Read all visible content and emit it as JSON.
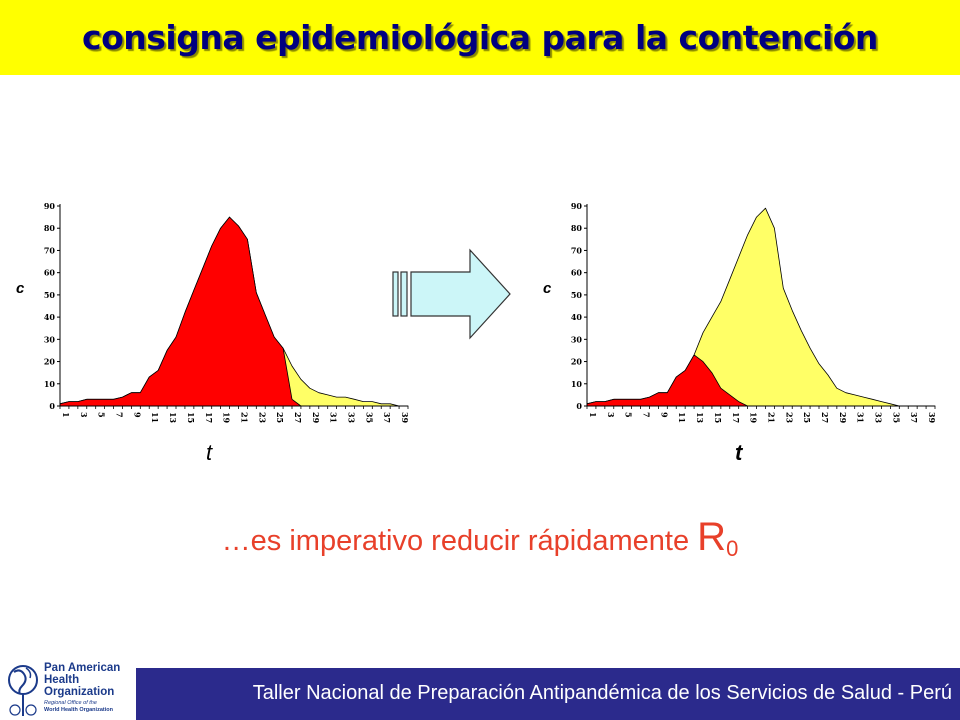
{
  "header": {
    "title": "consigna epidemiológica para la contención"
  },
  "chart_data": [
    {
      "type": "area",
      "ylabel": "c",
      "xlabel": "t",
      "ylim": [
        0,
        90
      ],
      "yticks": [
        0,
        10,
        20,
        30,
        40,
        50,
        60,
        70,
        80,
        90
      ],
      "xticks": [
        "1",
        "3",
        "5",
        "7",
        "9",
        "11",
        "13",
        "15",
        "17",
        "19",
        "21",
        "23",
        "25",
        "27",
        "29",
        "31",
        "33",
        "35",
        "37",
        "39"
      ],
      "x": [
        1,
        2,
        3,
        4,
        5,
        6,
        7,
        8,
        9,
        10,
        11,
        12,
        13,
        14,
        15,
        16,
        17,
        18,
        19,
        20,
        21,
        22,
        23,
        24,
        25,
        26,
        27,
        28,
        29,
        30,
        31,
        32,
        33,
        34,
        35,
        36,
        37,
        38,
        39,
        40
      ],
      "series": [
        {
          "color": "#ffff66",
          "values": [
            1,
            2,
            2,
            3,
            3,
            3,
            3,
            4,
            6,
            6,
            13,
            16,
            25,
            31,
            42,
            52,
            62,
            72,
            80,
            85,
            81,
            75,
            51,
            41,
            31,
            26,
            18,
            12,
            8,
            6,
            5,
            4,
            4,
            3,
            2,
            2,
            1,
            1,
            0,
            0
          ]
        },
        {
          "color": "#ff0000",
          "values": [
            1,
            2,
            2,
            3,
            3,
            3,
            3,
            4,
            6,
            6,
            13,
            16,
            25,
            31,
            42,
            52,
            62,
            72,
            80,
            85,
            81,
            75,
            51,
            41,
            31,
            26,
            3,
            0,
            0,
            0,
            0,
            0,
            0,
            0,
            0,
            0,
            0,
            0,
            0,
            0
          ]
        }
      ]
    },
    {
      "type": "area",
      "ylabel": "c",
      "xlabel": "t",
      "ylim": [
        0,
        90
      ],
      "yticks": [
        0,
        10,
        20,
        30,
        40,
        50,
        60,
        70,
        80,
        90
      ],
      "xticks": [
        "1",
        "3",
        "5",
        "7",
        "9",
        "11",
        "13",
        "15",
        "17",
        "19",
        "21",
        "23",
        "25",
        "27",
        "29",
        "31",
        "33",
        "35",
        "37",
        "39"
      ],
      "x": [
        1,
        2,
        3,
        4,
        5,
        6,
        7,
        8,
        9,
        10,
        11,
        12,
        13,
        14,
        15,
        16,
        17,
        18,
        19,
        20,
        21,
        22,
        23,
        24,
        25,
        26,
        27,
        28,
        29,
        30,
        31,
        32,
        33,
        34,
        35,
        36,
        37,
        38,
        39,
        40
      ],
      "series": [
        {
          "color": "#ffff66",
          "values": [
            1,
            2,
            2,
            3,
            3,
            3,
            3,
            4,
            6,
            6,
            13,
            16,
            23,
            33,
            40,
            47,
            57,
            67,
            77,
            85,
            89,
            80,
            53,
            43,
            34,
            26,
            19,
            14,
            8,
            6,
            5,
            4,
            3,
            2,
            1,
            0,
            0,
            0,
            0,
            0
          ]
        },
        {
          "color": "#ff0000",
          "values": [
            1,
            2,
            2,
            3,
            3,
            3,
            3,
            4,
            6,
            6,
            13,
            16,
            23,
            20,
            15,
            8,
            5,
            2,
            0,
            0,
            0,
            0,
            0,
            0,
            0,
            0,
            0,
            0,
            0,
            0,
            0,
            0,
            0,
            0,
            0,
            0,
            0,
            0,
            0,
            0
          ]
        }
      ]
    }
  ],
  "body": {
    "statement": "…es imperativo reducir rápidamente",
    "symbol": "R",
    "subscript": "0"
  },
  "footer": {
    "text": "Taller Nacional de Preparación Antipandémica de los Servicios de Salud - Perú",
    "logo_line1": "Pan American",
    "logo_line2": "Health",
    "logo_line3": "Organization",
    "logo_small1": "Regional Office of the",
    "logo_small2": "World Health Organization"
  },
  "colors": {
    "title_bar": "#ffff00",
    "title_text": "#000080",
    "accent_red": "#ff0000",
    "accent_yellow": "#ffff66",
    "footer_bar": "#2b2a8c",
    "arrow_fill": "#ccf6f8"
  }
}
